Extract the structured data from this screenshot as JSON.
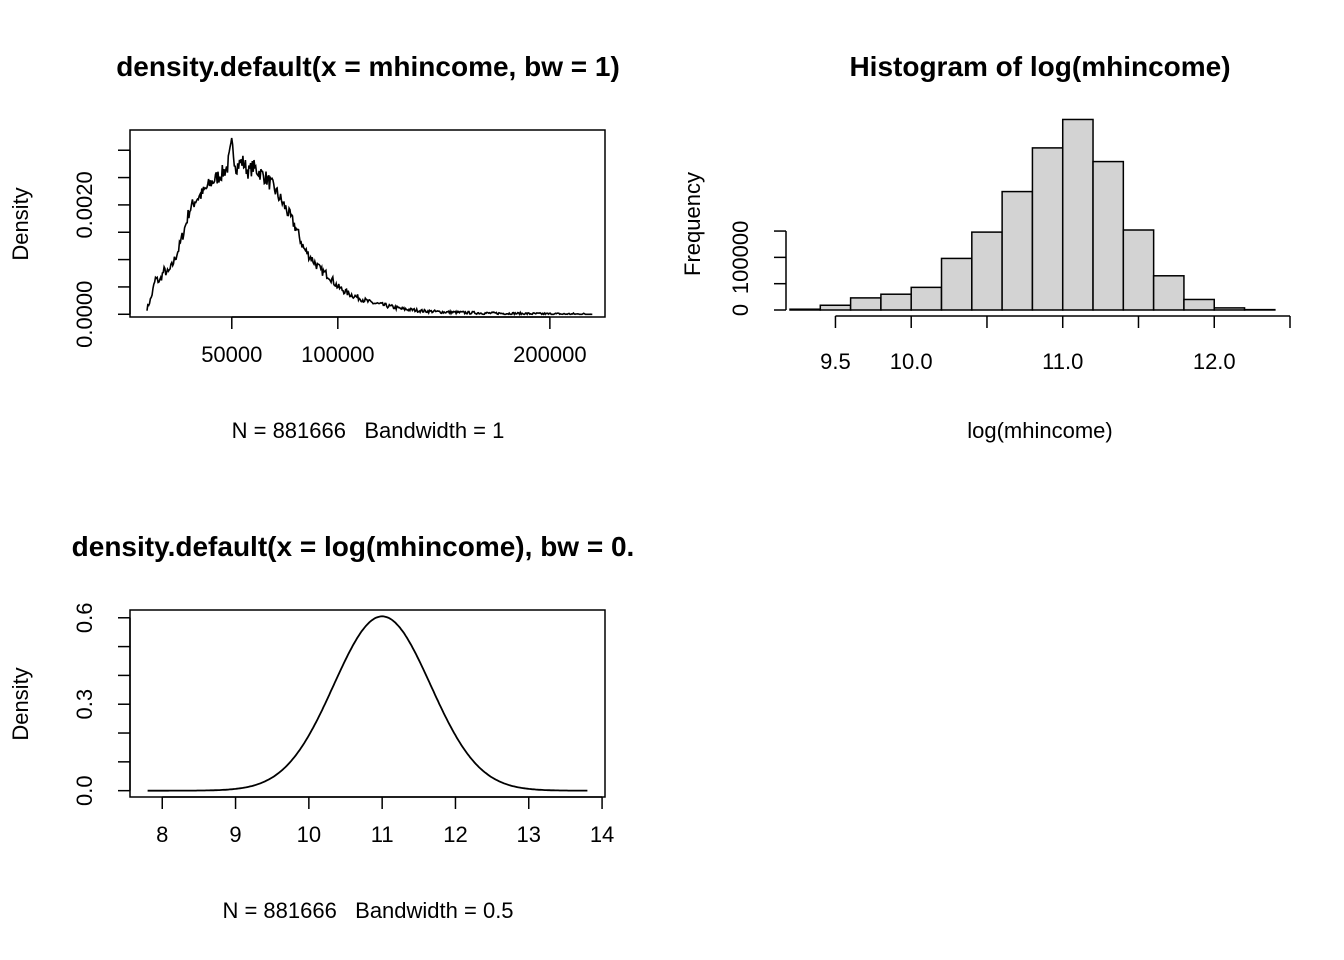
{
  "chart_data": [
    {
      "type": "line",
      "title": "density.default(x = mhincome, bw = 1)",
      "xlabel": "N = 881666   Bandwidth = 1",
      "ylabel": "Density",
      "x_ticks": [
        50000,
        100000,
        200000
      ],
      "x_tick_labels": [
        "50000",
        "100000",
        "200000"
      ],
      "y_ticks": [
        0.0,
        0.0005,
        0.001,
        0.0015,
        0.002,
        0.0025,
        0.003
      ],
      "y_tick_labels": [
        "0.0000",
        "0.0020"
      ],
      "y_tick_labeled_values": [
        0.0,
        0.002
      ],
      "xlim": [
        2000,
        226000
      ],
      "ylim": [
        -5e-05,
        0.00337
      ],
      "x_range": [
        10000,
        220000
      ],
      "grid": false,
      "series": [
        {
          "x": [
            10000,
            12000,
            14000,
            16000,
            18000,
            20000,
            22000,
            25000,
            28000,
            30000,
            33000,
            36000,
            40000,
            43000,
            46000,
            48000,
            50000,
            52000,
            55000,
            58000,
            60000,
            63000,
            66000,
            70000,
            73000,
            76000,
            80000,
            84000,
            88000,
            92000,
            96000,
            100000,
            105000,
            110000,
            115000,
            120000,
            125000,
            130000,
            135000,
            140000,
            150000,
            160000,
            170000,
            180000,
            190000,
            200000,
            210000,
            220000
          ],
          "y": [
            0.0001,
            0.0003,
            0.00065,
            0.0006,
            0.0008,
            0.00075,
            0.0009,
            0.0012,
            0.0016,
            0.0019,
            0.0021,
            0.0022,
            0.0024,
            0.0025,
            0.0026,
            0.0027,
            0.0031,
            0.0027,
            0.0028,
            0.0026,
            0.0027,
            0.0026,
            0.0025,
            0.0023,
            0.0021,
            0.0019,
            0.0016,
            0.0012,
            0.001,
            0.0008,
            0.0007,
            0.0005,
            0.00038,
            0.0003,
            0.00022,
            0.00018,
            0.00014,
            0.0001,
            8e-05,
            6e-05,
            4e-05,
            3e-05,
            2e-05,
            1.5e-05,
            1e-05,
            5e-06,
            3e-06,
            2e-06
          ]
        }
      ]
    },
    {
      "type": "bar",
      "title": "Histogram of log(mhincome)",
      "xlabel": "log(mhincome)",
      "ylabel": "Frequency",
      "bin_width": 0.2,
      "bin_edges": [
        9.2,
        9.4,
        9.6,
        9.8,
        10.0,
        10.2,
        10.4,
        10.6,
        10.8,
        11.0,
        11.2,
        11.4,
        11.6,
        11.8,
        12.0,
        12.2,
        12.4
      ],
      "values": [
        1500,
        9000,
        23000,
        30000,
        43000,
        98000,
        148000,
        225000,
        308000,
        362000,
        282000,
        152000,
        65000,
        20000,
        4000,
        700
      ],
      "x_ticks": [
        9.5,
        10.0,
        11.0,
        12.0
      ],
      "x_tick_labels": [
        "9.5",
        "10.0",
        "11.0",
        "12.0"
      ],
      "y_ticks": [
        0,
        50000,
        100000,
        150000
      ],
      "y_tick_labels": [
        "0",
        "100000"
      ],
      "y_tick_labeled_values": [
        0,
        100000
      ],
      "xlim": [
        9.2,
        12.5
      ],
      "ylim": [
        0,
        380000
      ],
      "bar_color": "#d3d3d3",
      "grid": false
    },
    {
      "type": "line",
      "title": "density.default(x = log(mhincome), bw = 0.",
      "xlabel": "N = 881666   Bandwidth = 0.5",
      "ylabel": "Density",
      "x_ticks": [
        8,
        9,
        10,
        11,
        12,
        13,
        14
      ],
      "x_tick_labels": [
        "8",
        "9",
        "10",
        "11",
        "12",
        "13",
        "14"
      ],
      "y_ticks": [
        0.0,
        0.1,
        0.2,
        0.3,
        0.4,
        0.5,
        0.6
      ],
      "y_tick_labels": [
        "0.0",
        "0.3",
        "0.6"
      ],
      "y_tick_labeled_values": [
        0.0,
        0.3,
        0.6
      ],
      "xlim": [
        7.56,
        14.04
      ],
      "ylim": [
        -0.022,
        0.627
      ],
      "x_range": [
        7.8,
        13.8
      ],
      "peak_x": 11.0,
      "peak_y": 0.605,
      "spread_sd": 0.66,
      "grid": false
    }
  ]
}
